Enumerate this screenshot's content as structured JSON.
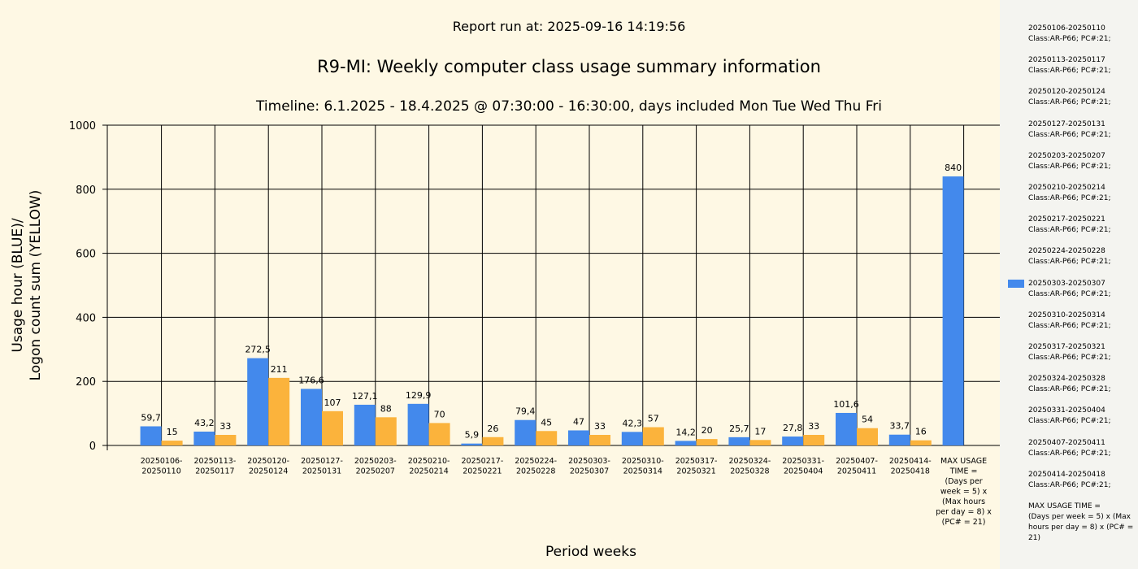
{
  "header": {
    "report_run": "Report run at: 2025-09-16 14:19:56"
  },
  "chart_data": {
    "type": "bar",
    "title": "R9-MI: Weekly computer class usage summary information",
    "subtitle": "Timeline:  6.1.2025  - 18.4.2025  @  07:30:00 -  16:30:00, days included Mon Tue Wed Thu Fri",
    "xlabel": "Period weeks",
    "ylabel": [
      "Usage hour (BLUE)/",
      "Logon count sum (YELLOW)"
    ],
    "ylim": [
      0,
      1000
    ],
    "yticks": [
      0,
      200,
      400,
      600,
      800,
      1000
    ],
    "grid": true,
    "legend_position": "right",
    "colors": {
      "usage": "#4389ec",
      "logon": "#fbb33c",
      "background": "#fef8e4",
      "legend_bg": "#f4f4f0"
    },
    "categories": [
      [
        "20250106-",
        "20250110"
      ],
      [
        "20250113-",
        "20250117"
      ],
      [
        "20250120-",
        "20250124"
      ],
      [
        "20250127-",
        "20250131"
      ],
      [
        "20250203-",
        "20250207"
      ],
      [
        "20250210-",
        "20250214"
      ],
      [
        "20250217-",
        "20250221"
      ],
      [
        "20250224-",
        "20250228"
      ],
      [
        "20250303-",
        "20250307"
      ],
      [
        "20250310-",
        "20250314"
      ],
      [
        "20250317-",
        "20250321"
      ],
      [
        "20250324-",
        "20250328"
      ],
      [
        "20250331-",
        "20250404"
      ],
      [
        "20250407-",
        "20250411"
      ],
      [
        "20250414-",
        "20250418"
      ],
      [
        "MAX USAGE",
        "TIME =",
        "(Days per",
        "week = 5) x",
        "(Max hours",
        "per day = 8) x",
        "(PC# = 21)"
      ]
    ],
    "series": [
      {
        "values": [
          59.7,
          43.2,
          272.5,
          176.6,
          127.1,
          129.9,
          5.9,
          79.4,
          47,
          42.3,
          14.2,
          25.7,
          27.8,
          101.6,
          33.7,
          840
        ],
        "labels": [
          "59,7",
          "43,2",
          "272,5",
          "176,6",
          "127,1",
          "129,9",
          "5,9",
          "79,4",
          "47",
          "42,3",
          "14,2",
          "25,7",
          "27,8",
          "101,6",
          "33,7",
          "840"
        ]
      },
      {
        "values": [
          15,
          33,
          211,
          107,
          88,
          70,
          26,
          45,
          33,
          57,
          20,
          17,
          33,
          54,
          16,
          null
        ],
        "labels": [
          "15",
          "33",
          "211",
          "107",
          "88",
          "70",
          "26",
          "45",
          "33",
          "57",
          "20",
          "17",
          "33",
          "54",
          "16",
          ""
        ]
      }
    ]
  },
  "legend": {
    "items": [
      [
        "20250106-20250110",
        "Class:AR-P66; PC#:21;"
      ],
      [
        "20250113-20250117",
        "Class:AR-P66; PC#:21;"
      ],
      [
        "20250120-20250124",
        "Class:AR-P66; PC#:21;"
      ],
      [
        "20250127-20250131",
        "Class:AR-P66; PC#:21;"
      ],
      [
        "20250203-20250207",
        "Class:AR-P66; PC#:21;"
      ],
      [
        "20250210-20250214",
        "Class:AR-P66; PC#:21;"
      ],
      [
        "20250217-20250221",
        "Class:AR-P66; PC#:21;"
      ],
      [
        "20250224-20250228",
        "Class:AR-P66; PC#:21;"
      ],
      [
        "20250303-20250307",
        "Class:AR-P66; PC#:21;"
      ],
      [
        "20250310-20250314",
        "Class:AR-P66; PC#:21;"
      ],
      [
        "20250317-20250321",
        "Class:AR-P66; PC#:21;"
      ],
      [
        "20250324-20250328",
        "Class:AR-P66; PC#:21;"
      ],
      [
        "20250331-20250404",
        "Class:AR-P66; PC#:21;"
      ],
      [
        "20250407-20250411",
        "Class:AR-P66; PC#:21;"
      ],
      [
        "20250414-20250418",
        "Class:AR-P66; PC#:21;"
      ],
      [
        "MAX USAGE TIME =",
        " (Days per week = 5) x (Max hours per day = 8) x (PC# = 21)"
      ]
    ],
    "highlighted_index": 8
  }
}
